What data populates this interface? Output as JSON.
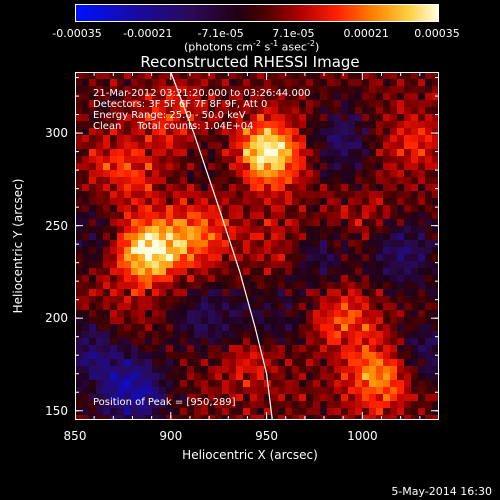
{
  "colorbar": {
    "ticks": [
      "-0.00035",
      "-0.00021",
      "-7.1e-05",
      "7.1e-05",
      "0.00021",
      "0.00035"
    ],
    "unit_prefix": "(photons cm",
    "unit_exp1": "-2",
    "unit_mid1": " s",
    "unit_exp2": "-1",
    "unit_mid2": " asec",
    "unit_exp3": "-2",
    "unit_suffix": ")"
  },
  "info": {
    "line1": "21-Mar-2012 03:21:20.000 to 03:26:44.000",
    "line2": "Detectors: 3F 5F 6F 7F 8F 9F, Att 0",
    "line3": "Energy Range: 25.0 - 50.0 keV",
    "line4": "Clean     Total counts: 1.04E+04",
    "peak": "Position of Peak = [950,289]"
  },
  "footer": "5-May-2014 16:30",
  "chart_data": {
    "type": "heatmap",
    "title": "Reconstructed RHESSI Image",
    "xlabel": "Heliocentric X (arcsec)",
    "ylabel": "Heliocentric Y (arcsec)",
    "xlim": [
      850,
      1040
    ],
    "ylim": [
      145,
      333
    ],
    "xticks": [
      "850",
      "900",
      "950",
      "1000"
    ],
    "yticks": [
      "150",
      "200",
      "250",
      "300"
    ],
    "colorbar_range": [
      -0.00035,
      0.00035
    ],
    "peaks": [
      {
        "x": 950,
        "y": 289,
        "value": 0.00035
      },
      {
        "x": 888,
        "y": 237,
        "value": 0.00032
      },
      {
        "x": 1010,
        "y": 168,
        "value": 0.00022
      },
      {
        "x": 915,
        "y": 245,
        "value": 0.00016
      },
      {
        "x": 875,
        "y": 280,
        "value": 0.00014
      },
      {
        "x": 960,
        "y": 240,
        "value": 0.00012
      },
      {
        "x": 990,
        "y": 200,
        "value": 0.00015
      },
      {
        "x": 940,
        "y": 175,
        "value": 0.0001
      },
      {
        "x": 1025,
        "y": 295,
        "value": 0.00012
      },
      {
        "x": 900,
        "y": 310,
        "value": 0.00011
      },
      {
        "x": 870,
        "y": 200,
        "value": 9e-05
      },
      {
        "x": 1000,
        "y": 250,
        "value": 8e-05
      }
    ],
    "troughs": [
      {
        "x": 880,
        "y": 160,
        "value": -0.00026
      },
      {
        "x": 860,
        "y": 185,
        "value": -0.00018
      },
      {
        "x": 1020,
        "y": 235,
        "value": -0.00018
      },
      {
        "x": 975,
        "y": 235,
        "value": -0.00016
      },
      {
        "x": 990,
        "y": 295,
        "value": -0.00015
      },
      {
        "x": 920,
        "y": 200,
        "value": -0.00014
      },
      {
        "x": 1035,
        "y": 180,
        "value": -0.00016
      },
      {
        "x": 860,
        "y": 245,
        "value": -0.0001
      },
      {
        "x": 930,
        "y": 285,
        "value": -8e-05
      },
      {
        "x": 955,
        "y": 200,
        "value": -0.0001
      }
    ],
    "limb_curve": [
      [
        900,
        333
      ],
      [
        912,
        300
      ],
      [
        925,
        260
      ],
      [
        936,
        225
      ],
      [
        944,
        195
      ],
      [
        950,
        170
      ],
      [
        953,
        145
      ]
    ]
  }
}
